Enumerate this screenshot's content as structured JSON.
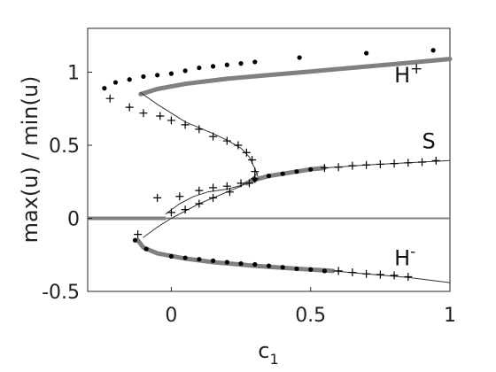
{
  "chart_data": {
    "type": "line",
    "xlabel": "c",
    "xlabel_sub": "1",
    "ylabel": "max(u) / min(u)",
    "xlim": [
      -0.3,
      1.0
    ],
    "ylim": [
      -0.5,
      1.3
    ],
    "xticks": [
      0,
      0.5,
      1
    ],
    "xtick_labels": [
      "0",
      "0.5",
      "1"
    ],
    "yticks": [
      -0.5,
      0,
      0.5,
      1
    ],
    "ytick_labels": [
      "-0.5",
      "0",
      "0.5",
      "1"
    ],
    "grid": false,
    "annotations": [
      {
        "base": "H",
        "sup": "+",
        "x": 0.8,
        "y": 0.93
      },
      {
        "base": "S",
        "sup": "",
        "x": 0.9,
        "y": 0.48
      },
      {
        "base": "H",
        "sup": "-",
        "x": 0.8,
        "y": -0.32
      }
    ],
    "colors": {
      "thick": "#808080",
      "thin": "#333333",
      "zero": "#808080",
      "marker": "#000000"
    },
    "series": [
      {
        "style": "thick",
        "points": [
          [
            -0.11,
            0.85
          ],
          [
            -0.05,
            0.885
          ],
          [
            0.05,
            0.92
          ],
          [
            0.2,
            0.955
          ],
          [
            0.35,
            0.98
          ],
          [
            0.5,
            1.005
          ],
          [
            0.65,
            1.03
          ],
          [
            0.8,
            1.055
          ],
          [
            1.0,
            1.09
          ]
        ]
      },
      {
        "style": "thin",
        "points": [
          [
            -0.11,
            0.86
          ],
          [
            -0.05,
            0.78
          ],
          [
            0.0,
            0.72
          ],
          [
            0.05,
            0.66
          ],
          [
            0.1,
            0.62
          ],
          [
            0.15,
            0.58
          ],
          [
            0.2,
            0.535
          ],
          [
            0.25,
            0.48
          ],
          [
            0.28,
            0.42
          ],
          [
            0.3,
            0.34
          ],
          [
            0.31,
            0.29
          ]
        ]
      },
      {
        "style": "thin",
        "points": [
          [
            -0.1,
            -0.13
          ],
          [
            -0.05,
            -0.06
          ],
          [
            0.0,
            0.0
          ],
          [
            0.05,
            0.05
          ],
          [
            0.1,
            0.1
          ],
          [
            0.15,
            0.14
          ],
          [
            0.2,
            0.18
          ],
          [
            0.25,
            0.22
          ],
          [
            0.28,
            0.26
          ],
          [
            0.3,
            0.29
          ],
          [
            0.31,
            0.31
          ]
        ]
      },
      {
        "style": "thin",
        "points": [
          [
            -0.02,
            0.03
          ],
          [
            0.03,
            0.1
          ],
          [
            0.08,
            0.15
          ],
          [
            0.13,
            0.18
          ],
          [
            0.2,
            0.2
          ],
          [
            0.26,
            0.23
          ],
          [
            0.3,
            0.29
          ]
        ]
      },
      {
        "style": "thick",
        "points": [
          [
            0.27,
            0.24
          ],
          [
            0.3,
            0.265
          ],
          [
            0.35,
            0.29
          ],
          [
            0.4,
            0.305
          ],
          [
            0.45,
            0.32
          ],
          [
            0.5,
            0.335
          ],
          [
            0.55,
            0.345
          ]
        ]
      },
      {
        "style": "thin",
        "points": [
          [
            0.55,
            0.345
          ],
          [
            0.7,
            0.365
          ],
          [
            0.85,
            0.38
          ],
          [
            1.0,
            0.395
          ]
        ]
      },
      {
        "style": "thick",
        "points": [
          [
            -0.12,
            -0.15
          ],
          [
            -0.1,
            -0.2
          ],
          [
            -0.05,
            -0.24
          ],
          [
            0.05,
            -0.275
          ],
          [
            0.15,
            -0.3
          ],
          [
            0.3,
            -0.325
          ],
          [
            0.45,
            -0.345
          ],
          [
            0.58,
            -0.36
          ]
        ]
      },
      {
        "style": "thin",
        "points": [
          [
            0.58,
            -0.36
          ],
          [
            0.7,
            -0.38
          ],
          [
            0.85,
            -0.405
          ],
          [
            1.0,
            -0.44
          ]
        ]
      }
    ],
    "zero_line": {
      "x_start": -0.3,
      "x_end": 1.0,
      "y": 0,
      "thick_until": -0.02
    },
    "dots": [
      [
        -0.24,
        0.89
      ],
      [
        -0.2,
        0.93
      ],
      [
        -0.15,
        0.95
      ],
      [
        -0.1,
        0.97
      ],
      [
        -0.05,
        0.98
      ],
      [
        0.0,
        0.99
      ],
      [
        0.05,
        1.01
      ],
      [
        0.1,
        1.03
      ],
      [
        0.15,
        1.04
      ],
      [
        0.2,
        1.05
      ],
      [
        0.25,
        1.06
      ],
      [
        0.3,
        1.07
      ],
      [
        0.46,
        1.1
      ],
      [
        0.7,
        1.13
      ],
      [
        0.94,
        1.15
      ],
      [
        0.3,
        0.265
      ],
      [
        0.35,
        0.29
      ],
      [
        0.4,
        0.305
      ],
      [
        0.45,
        0.32
      ],
      [
        0.5,
        0.335
      ],
      [
        -0.13,
        -0.15
      ],
      [
        -0.09,
        -0.21
      ],
      [
        0.0,
        -0.26
      ],
      [
        0.05,
        -0.27
      ],
      [
        0.1,
        -0.28
      ],
      [
        0.15,
        -0.29
      ],
      [
        0.2,
        -0.3
      ],
      [
        0.25,
        -0.31
      ],
      [
        0.3,
        -0.315
      ],
      [
        0.35,
        -0.325
      ],
      [
        0.4,
        -0.335
      ],
      [
        0.45,
        -0.345
      ],
      [
        0.5,
        -0.35
      ],
      [
        0.55,
        -0.36
      ]
    ],
    "pluses": [
      [
        -0.22,
        0.82
      ],
      [
        -0.15,
        0.76
      ],
      [
        -0.1,
        0.72
      ],
      [
        -0.04,
        0.7
      ],
      [
        0.0,
        0.67
      ],
      [
        0.05,
        0.64
      ],
      [
        0.1,
        0.61
      ],
      [
        0.15,
        0.56
      ],
      [
        0.2,
        0.53
      ],
      [
        0.24,
        0.5
      ],
      [
        0.27,
        0.45
      ],
      [
        0.29,
        0.4
      ],
      [
        0.3,
        0.32
      ],
      [
        0.3,
        0.27
      ],
      [
        0.28,
        0.24
      ],
      [
        0.21,
        0.18
      ],
      [
        0.15,
        0.14
      ],
      [
        0.1,
        0.1
      ],
      [
        0.05,
        0.06
      ],
      [
        0.0,
        0.04
      ],
      [
        -0.05,
        0.14
      ],
      [
        0.03,
        0.15
      ],
      [
        0.1,
        0.19
      ],
      [
        0.15,
        0.21
      ],
      [
        0.2,
        0.22
      ],
      [
        0.25,
        0.24
      ],
      [
        0.55,
        0.345
      ],
      [
        0.6,
        0.35
      ],
      [
        0.65,
        0.36
      ],
      [
        0.7,
        0.365
      ],
      [
        0.75,
        0.37
      ],
      [
        0.8,
        0.375
      ],
      [
        0.85,
        0.38
      ],
      [
        0.9,
        0.385
      ],
      [
        0.95,
        0.395
      ],
      [
        -0.12,
        -0.11
      ],
      [
        0.6,
        -0.36
      ],
      [
        0.65,
        -0.37
      ],
      [
        0.7,
        -0.38
      ],
      [
        0.75,
        -0.385
      ],
      [
        0.8,
        -0.39
      ],
      [
        0.85,
        -0.4
      ]
    ]
  }
}
